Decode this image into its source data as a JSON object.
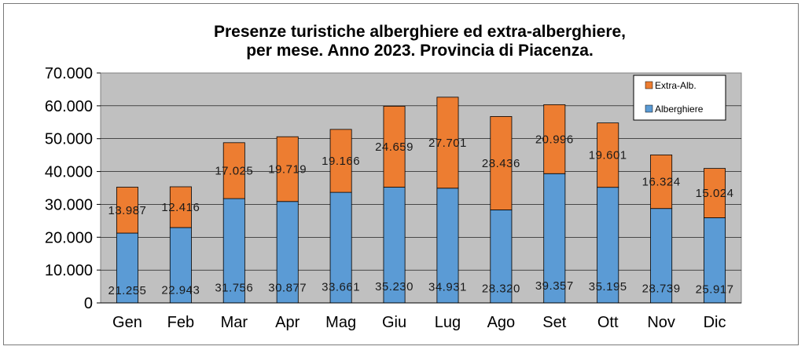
{
  "chart_data": {
    "type": "bar",
    "stacked": true,
    "title_line1": "Presenze turistiche alberghiere ed extra-alberghiere,",
    "title_line2": "per mese. Anno 2023. Provincia di Piacenza.",
    "categories": [
      "Gen",
      "Feb",
      "Mar",
      "Apr",
      "Mag",
      "Giu",
      "Lug",
      "Ago",
      "Set",
      "Ott",
      "Nov",
      "Dic"
    ],
    "series": [
      {
        "name": "Alberghiere",
        "color": "#5b9bd5",
        "values": [
          21255,
          22943,
          31756,
          30877,
          33661,
          35230,
          34931,
          28320,
          39357,
          35195,
          28739,
          25917
        ],
        "labels": [
          "21.255",
          "22.943",
          "31.756",
          "30.877",
          "33.661",
          "35.230",
          "34.931",
          "28.320",
          "39.357",
          "35.195",
          "28.739",
          "25.917"
        ]
      },
      {
        "name": "Extra-Alb.",
        "color": "#ed7d31",
        "values": [
          13987,
          12416,
          17025,
          19719,
          19166,
          24659,
          27701,
          28436,
          20996,
          19601,
          16324,
          15024
        ],
        "labels": [
          "13.987",
          "12.416",
          "17.025",
          "19.719",
          "19.166",
          "24.659",
          "27.701",
          "28.436",
          "20.996",
          "19.601",
          "16.324",
          "15.024"
        ]
      }
    ],
    "ylim": [
      0,
      70000
    ],
    "yticks": [
      0,
      10000,
      20000,
      30000,
      40000,
      50000,
      60000,
      70000
    ],
    "ytick_labels": [
      "0",
      "10.000",
      "20.000",
      "30.000",
      "40.000",
      "50.000",
      "60.000",
      "70.000"
    ],
    "grid": true,
    "plot_background": "#c0c0c0",
    "legend_position": "top-right",
    "legend_order": [
      "Extra-Alb.",
      "Alberghiere"
    ]
  }
}
